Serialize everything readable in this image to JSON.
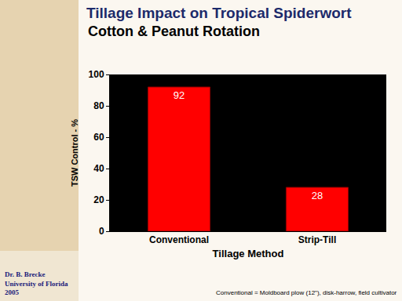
{
  "chart_data": {
    "type": "bar",
    "title": "Tillage Impact on Tropical Spiderwort",
    "subtitle": "Cotton & Peanut Rotation",
    "x_label": "Tillage Method",
    "y_label": "TSW Control - %",
    "categories": [
      "Conventional",
      "Strip-Till"
    ],
    "values": [
      92,
      28
    ],
    "color": "#ff0000",
    "ylim": [
      0,
      100
    ],
    "yticks": [
      0,
      20,
      40,
      60,
      80,
      100
    ],
    "grid": false,
    "data_labels": true,
    "source": [
      "Dr. B. Brecke",
      "University of Florida",
      "2005"
    ],
    "note": "Conventional = Moldboard plow (12\"), disk-harrow, field cultivator"
  }
}
